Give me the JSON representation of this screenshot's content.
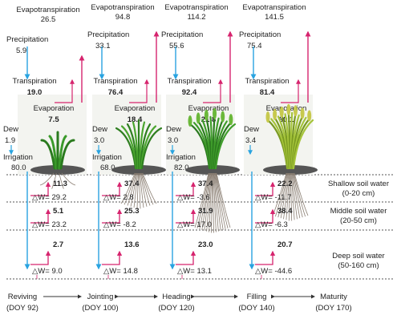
{
  "colors": {
    "precip": "#29a3e0",
    "evap": "#d6246e",
    "soil_line": "#444444"
  },
  "icons": [
    "maize-plant-icon",
    "wheat-seedling-icon",
    "wheat-jointing-icon",
    "wheat-heading-icon",
    "wheat-mature-icon",
    "soil-roots-icon"
  ],
  "periods": [
    {
      "stage_label": "Reviving",
      "doy_label": "(DOY 92)",
      "evapotranspiration_label": "Evapotranspiration",
      "evapotranspiration": "26.5",
      "precipitation_label": "Precipitation",
      "precipitation": "5.9",
      "transpiration_label": "Transpiration",
      "transpiration": "19.0",
      "evaporation_label": "Evaporation",
      "evaporation": "7.5",
      "dew_label": "Dew",
      "dew": "1.9",
      "irrigation_label": "Irrigation",
      "irrigation": "80.0",
      "flux_shallow": "11.3",
      "flux_middle": "5.1",
      "flux_deep": "2.7",
      "dw_shallow": "△W= 29.2",
      "dw_middle": "△W= 23.2",
      "dw_deep": "△W= 9.0"
    },
    {
      "stage_label": "Jointing",
      "doy_label": "(DOY 100)",
      "evapotranspiration_label": "Evapotranspiration",
      "evapotranspiration": "94.8",
      "precipitation_label": "Precipitation",
      "precipitation": "33.1",
      "transpiration_label": "Transpiration",
      "transpiration": "76.4",
      "evaporation_label": "Evaporation",
      "evaporation": "18.4",
      "dew_label": "Dew",
      "dew": "3.0",
      "irrigation_label": "Irrigation",
      "irrigation": "68.0",
      "flux_shallow": "37.4",
      "flux_middle": "25.3",
      "flux_deep": "13.6",
      "dw_shallow": "△W= 2.8",
      "dw_middle": "△W= -8.2",
      "dw_deep": "△W= 14.8"
    },
    {
      "stage_label": "Heading",
      "doy_label": "(DOY 120)",
      "evapotranspiration_label": "Evapotranspiration",
      "evapotranspiration": "114.2",
      "precipitation_label": "Precipitation",
      "precipitation": "55.6",
      "transpiration_label": "Transpiration",
      "transpiration": "92.4",
      "evaporation_label": "Evaporation",
      "evaporation": "21.8",
      "dew_label": "Dew",
      "dew": "3.0",
      "irrigation_label": "Irrigation",
      "irrigation": "82.0",
      "flux_shallow": "37.4",
      "flux_middle": "31.9",
      "flux_deep": "23.0",
      "dw_shallow": "△W= -3.6",
      "dw_middle": "△W= 17.0",
      "dw_deep": "△W= 13.1"
    },
    {
      "stage_label": "Filling",
      "doy_label": "(DOY 140)",
      "evapotranspiration_label": "Evapotranspiration",
      "evapotranspiration": "141.5",
      "precipitation_label": "Precipitation",
      "precipitation": "75.4",
      "transpiration_label": "Transpiration",
      "transpiration": "81.4",
      "evaporation_label": "Evaporation",
      "evaporation": "60.1",
      "dew_label": "Dew",
      "dew": "3.4",
      "irrigation_label": "",
      "irrigation": "",
      "flux_shallow": "22.2",
      "flux_middle": "38.4",
      "flux_deep": "20.7",
      "dw_shallow": "△W= -11.7",
      "dw_middle": "△W= -6.3",
      "dw_deep": "△W= -44.6"
    }
  ],
  "final_stage": {
    "stage_label": "Maturity",
    "doy_label": "(DOY 170)"
  },
  "layers": [
    {
      "name": "Shallow soil water",
      "depth": "(0-20 cm)"
    },
    {
      "name": "Middle soil water",
      "depth": "(20-50 cm)"
    },
    {
      "name": "Deep soil water",
      "depth": "(50-160 cm)"
    }
  ]
}
